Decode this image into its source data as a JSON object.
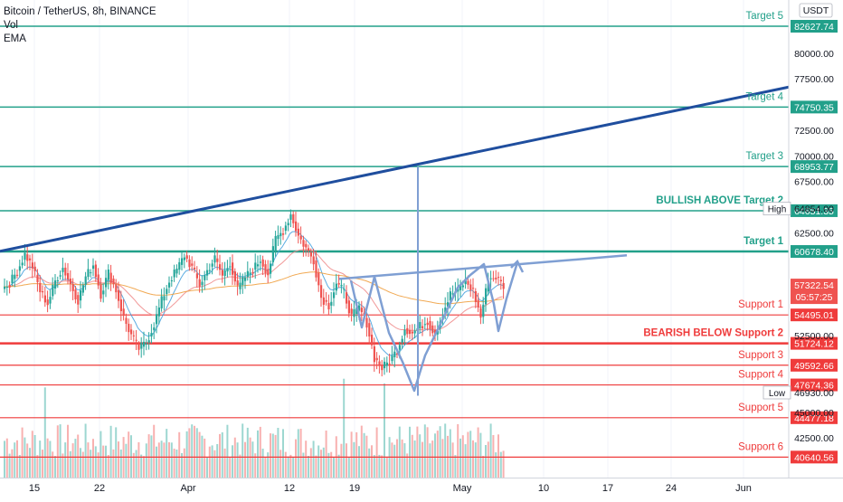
{
  "header": {
    "symbol": "Bitcoin / TetherUS, 8h, BINANCE",
    "indicator_vol": "Vol",
    "indicator_ema": "EMA"
  },
  "colors": {
    "up": "#26a69a",
    "down": "#ef5350",
    "target_line": "#22a08a",
    "support_line": "#ef3b3b",
    "trend_line": "#1f4e9e",
    "pattern": "#7f9fd3",
    "ema_short": "#4aa3df",
    "ema_mid": "#f08d8d",
    "ema_long": "#f0a040"
  },
  "chart_data": {
    "type": "candlestick",
    "instrument": "Bitcoin / TetherUS",
    "interval": "8h",
    "exchange": "BINANCE",
    "y_axis": {
      "currency": "USDT",
      "range": [
        39500,
        85000
      ],
      "ticks": [
        "80000.00",
        "77500.00",
        "72500.00",
        "70000.00",
        "67500.00",
        "62500.00",
        "52500.00",
        "45000.00",
        "42500.00"
      ]
    },
    "x_axis": {
      "ticks": [
        "15",
        "22",
        "Apr",
        "12",
        "19",
        "May",
        "10",
        "17",
        "24",
        "Jun"
      ]
    },
    "targets": [
      {
        "label": "Target 5",
        "price": "82627.74",
        "value": 82627.74
      },
      {
        "label": "Target 4",
        "price": "74750.35",
        "value": 74750.35
      },
      {
        "label": "Target 3",
        "price": "68953.77",
        "value": 68953.77
      },
      {
        "label": "BULLISH ABOVE Target 2",
        "price": "64651.35",
        "value": 64651.35
      },
      {
        "label": "Target 1",
        "price": "60678.40",
        "value": 60678.4
      }
    ],
    "supports": [
      {
        "label": "Support 1",
        "price": "54495.01",
        "value": 54495.01
      },
      {
        "label": "BEARISH BELOW Support 2",
        "price": "51724.12",
        "value": 51724.12
      },
      {
        "label": "Support 3",
        "price": "49592.66",
        "value": 49592.66
      },
      {
        "label": "Support 4",
        "price": "47674.36",
        "value": 47674.36
      },
      {
        "label": "Support 5",
        "price": "44477.18",
        "value": 44477.18
      },
      {
        "label": "Support 6",
        "price": "40640.56",
        "value": 40640.56
      }
    ],
    "high": {
      "label": "High",
      "price": "64854.00",
      "value": 64854.0
    },
    "low": {
      "label": "Low",
      "price": "46930.00",
      "value": 46930.0
    },
    "last": {
      "price": "57322.54",
      "countdown": "05:57:25",
      "value": 57322.54
    },
    "closes": [
      57600,
      58800,
      60400,
      59200,
      56800,
      55600,
      57800,
      59100,
      57500,
      55900,
      58200,
      59400,
      56500,
      58600,
      56900,
      54200,
      52500,
      51200,
      51800,
      53600,
      55900,
      57800,
      58900,
      60300,
      59100,
      57400,
      58800,
      60000,
      58300,
      59600,
      57000,
      58200,
      58900,
      59900,
      58500,
      61900,
      62700,
      64300,
      62200,
      61000,
      59800,
      56200,
      55400,
      57600,
      56700,
      54300,
      55200,
      53700,
      50300,
      49300,
      50000,
      51100,
      53200,
      52700,
      53400,
      53900,
      52600,
      54700,
      56500,
      56900,
      57800,
      56800,
      54300,
      58000,
      58200,
      57300
    ],
    "trendline_start": [
      57500,
      60700
    ],
    "trendline_end": [
      60400,
      76700
    ],
    "neckline": [
      [
        56500,
        58000
      ],
      [
        56600,
        60300
      ]
    ]
  }
}
